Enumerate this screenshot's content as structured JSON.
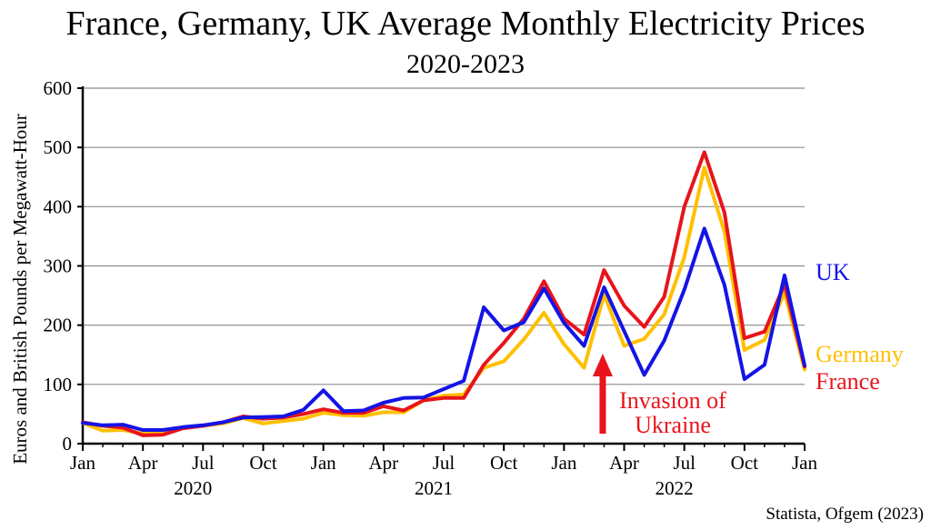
{
  "chart_data": {
    "type": "line",
    "title": "France, Germany, UK Average Monthly Electricity Prices",
    "subtitle": "2020-2023",
    "ylabel": "Euros and British Pounds per Megawatt-Hour",
    "xlabel": "",
    "ylim": [
      0,
      600
    ],
    "yticks": [
      "0",
      "100",
      "200",
      "300",
      "400",
      "500",
      "600"
    ],
    "xtick_labels": [
      "Jan",
      "Apr",
      "Jul",
      "Oct",
      "Jan",
      "Apr",
      "Jul",
      "Oct",
      "Jan",
      "Apr",
      "Jul",
      "Oct",
      "Jan"
    ],
    "year_labels": [
      "2020",
      "2021",
      "2022"
    ],
    "grid": "horizontal",
    "x": [
      "2020-01",
      "2020-02",
      "2020-03",
      "2020-04",
      "2020-05",
      "2020-06",
      "2020-07",
      "2020-08",
      "2020-09",
      "2020-10",
      "2020-11",
      "2020-12",
      "2021-01",
      "2021-02",
      "2021-03",
      "2021-04",
      "2021-05",
      "2021-06",
      "2021-07",
      "2021-08",
      "2021-09",
      "2021-10",
      "2021-11",
      "2021-12",
      "2022-01",
      "2022-02",
      "2022-03",
      "2022-04",
      "2022-05",
      "2022-06",
      "2022-07",
      "2022-08",
      "2022-09",
      "2022-10",
      "2022-11",
      "2022-12",
      "2023-01"
    ],
    "series": [
      {
        "name": "Germany",
        "color": "#FFC000",
        "values": [
          35,
          22,
          23,
          17,
          17,
          26,
          30,
          34,
          43,
          34,
          38,
          42,
          52,
          48,
          47,
          53,
          53,
          73,
          81,
          83,
          128,
          139,
          176,
          221,
          168,
          128,
          252,
          165,
          177,
          218,
          315,
          466,
          358,
          158,
          175,
          255,
          125
        ]
      },
      {
        "name": "France",
        "color": "#E8141C",
        "values": [
          36,
          30,
          27,
          14,
          15,
          26,
          30,
          36,
          46,
          42,
          44,
          50,
          58,
          52,
          52,
          63,
          56,
          73,
          77,
          77,
          133,
          170,
          211,
          274,
          211,
          184,
          293,
          233,
          197,
          248,
          400,
          492,
          390,
          178,
          189,
          269,
          130
        ]
      },
      {
        "name": "UK",
        "color": "#1414E6",
        "values": [
          35,
          31,
          32,
          23,
          23,
          28,
          31,
          36,
          44,
          45,
          46,
          57,
          90,
          55,
          56,
          69,
          77,
          78,
          92,
          106,
          230,
          191,
          205,
          262,
          204,
          165,
          264,
          190,
          116,
          174,
          260,
          363,
          268,
          109,
          133,
          284,
          132
        ]
      }
    ],
    "annotations": [
      {
        "text_line1": "Invasion of",
        "text_line2": "Ukraine",
        "color": "#E8141C",
        "x": "2022-03"
      }
    ],
    "source": "Statista, Ofgem (2023)"
  }
}
